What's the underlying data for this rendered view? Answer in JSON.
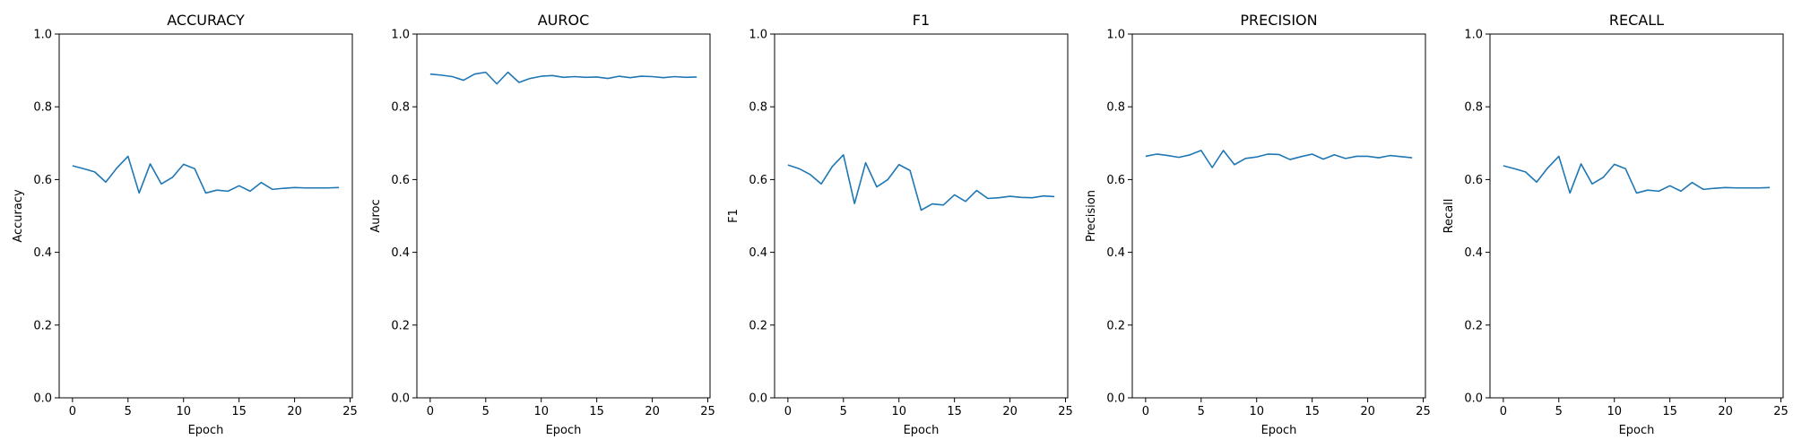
{
  "chart_data": [
    {
      "type": "line",
      "title": "ACCURACY",
      "xlabel": "Epoch",
      "ylabel": "Accuracy",
      "xlim": [
        -1.2,
        25.2
      ],
      "ylim": [
        0,
        1
      ],
      "xticks": [
        0,
        5,
        10,
        15,
        20,
        25
      ],
      "yticks": [
        0.0,
        0.2,
        0.4,
        0.6,
        0.8,
        1.0
      ],
      "grid": false,
      "color": "#1f77b4",
      "x": [
        0,
        1,
        2,
        3,
        4,
        5,
        6,
        7,
        8,
        9,
        10,
        11,
        12,
        13,
        14,
        15,
        16,
        17,
        18,
        19,
        20,
        21,
        22,
        23,
        24
      ],
      "y": [
        0.638,
        0.63,
        0.621,
        0.593,
        0.632,
        0.664,
        0.563,
        0.643,
        0.588,
        0.606,
        0.642,
        0.63,
        0.563,
        0.571,
        0.568,
        0.583,
        0.568,
        0.592,
        0.573,
        0.576,
        0.578,
        0.577,
        0.577,
        0.577,
        0.578
      ]
    },
    {
      "type": "line",
      "title": "AUROC",
      "xlabel": "Epoch",
      "ylabel": "Auroc",
      "xlim": [
        -1.2,
        25.2
      ],
      "ylim": [
        0,
        1
      ],
      "xticks": [
        0,
        5,
        10,
        15,
        20,
        25
      ],
      "yticks": [
        0.0,
        0.2,
        0.4,
        0.6,
        0.8,
        1.0
      ],
      "grid": false,
      "color": "#1f77b4",
      "x": [
        0,
        1,
        2,
        3,
        4,
        5,
        6,
        7,
        8,
        9,
        10,
        11,
        12,
        13,
        14,
        15,
        16,
        17,
        18,
        19,
        20,
        21,
        22,
        23,
        24
      ],
      "y": [
        0.89,
        0.887,
        0.883,
        0.873,
        0.89,
        0.895,
        0.863,
        0.895,
        0.867,
        0.878,
        0.884,
        0.886,
        0.881,
        0.883,
        0.881,
        0.882,
        0.878,
        0.884,
        0.88,
        0.884,
        0.883,
        0.88,
        0.883,
        0.881,
        0.882
      ]
    },
    {
      "type": "line",
      "title": "F1",
      "xlabel": "Epoch",
      "ylabel": "F1",
      "xlim": [
        -1.2,
        25.2
      ],
      "ylim": [
        0,
        1
      ],
      "xticks": [
        0,
        5,
        10,
        15,
        20,
        25
      ],
      "yticks": [
        0.0,
        0.2,
        0.4,
        0.6,
        0.8,
        1.0
      ],
      "grid": false,
      "color": "#1f77b4",
      "x": [
        0,
        1,
        2,
        3,
        4,
        5,
        6,
        7,
        8,
        9,
        10,
        11,
        12,
        13,
        14,
        15,
        16,
        17,
        18,
        19,
        20,
        21,
        22,
        23,
        24
      ],
      "y": [
        0.64,
        0.63,
        0.614,
        0.588,
        0.636,
        0.668,
        0.534,
        0.646,
        0.58,
        0.6,
        0.641,
        0.625,
        0.516,
        0.533,
        0.53,
        0.558,
        0.54,
        0.57,
        0.548,
        0.55,
        0.554,
        0.551,
        0.55,
        0.555,
        0.553
      ]
    },
    {
      "type": "line",
      "title": "PRECISION",
      "xlabel": "Epoch",
      "ylabel": "Precision",
      "xlim": [
        -1.2,
        25.2
      ],
      "ylim": [
        0,
        1
      ],
      "xticks": [
        0,
        5,
        10,
        15,
        20,
        25
      ],
      "yticks": [
        0.0,
        0.2,
        0.4,
        0.6,
        0.8,
        1.0
      ],
      "grid": false,
      "color": "#1f77b4",
      "x": [
        0,
        1,
        2,
        3,
        4,
        5,
        6,
        7,
        8,
        9,
        10,
        11,
        12,
        13,
        14,
        15,
        16,
        17,
        18,
        19,
        20,
        21,
        22,
        23,
        24
      ],
      "y": [
        0.664,
        0.67,
        0.666,
        0.661,
        0.668,
        0.68,
        0.633,
        0.68,
        0.641,
        0.658,
        0.662,
        0.67,
        0.669,
        0.655,
        0.663,
        0.67,
        0.656,
        0.668,
        0.658,
        0.664,
        0.664,
        0.66,
        0.666,
        0.663,
        0.66
      ]
    },
    {
      "type": "line",
      "title": "RECALL",
      "xlabel": "Epoch",
      "ylabel": "Recall",
      "xlim": [
        -1.2,
        25.2
      ],
      "ylim": [
        0,
        1
      ],
      "xticks": [
        0,
        5,
        10,
        15,
        20,
        25
      ],
      "yticks": [
        0.0,
        0.2,
        0.4,
        0.6,
        0.8,
        1.0
      ],
      "grid": false,
      "color": "#1f77b4",
      "x": [
        0,
        1,
        2,
        3,
        4,
        5,
        6,
        7,
        8,
        9,
        10,
        11,
        12,
        13,
        14,
        15,
        16,
        17,
        18,
        19,
        20,
        21,
        22,
        23,
        24
      ],
      "y": [
        0.638,
        0.63,
        0.621,
        0.593,
        0.632,
        0.664,
        0.563,
        0.643,
        0.588,
        0.606,
        0.642,
        0.63,
        0.563,
        0.571,
        0.568,
        0.583,
        0.568,
        0.592,
        0.573,
        0.576,
        0.578,
        0.577,
        0.577,
        0.577,
        0.578
      ]
    }
  ]
}
